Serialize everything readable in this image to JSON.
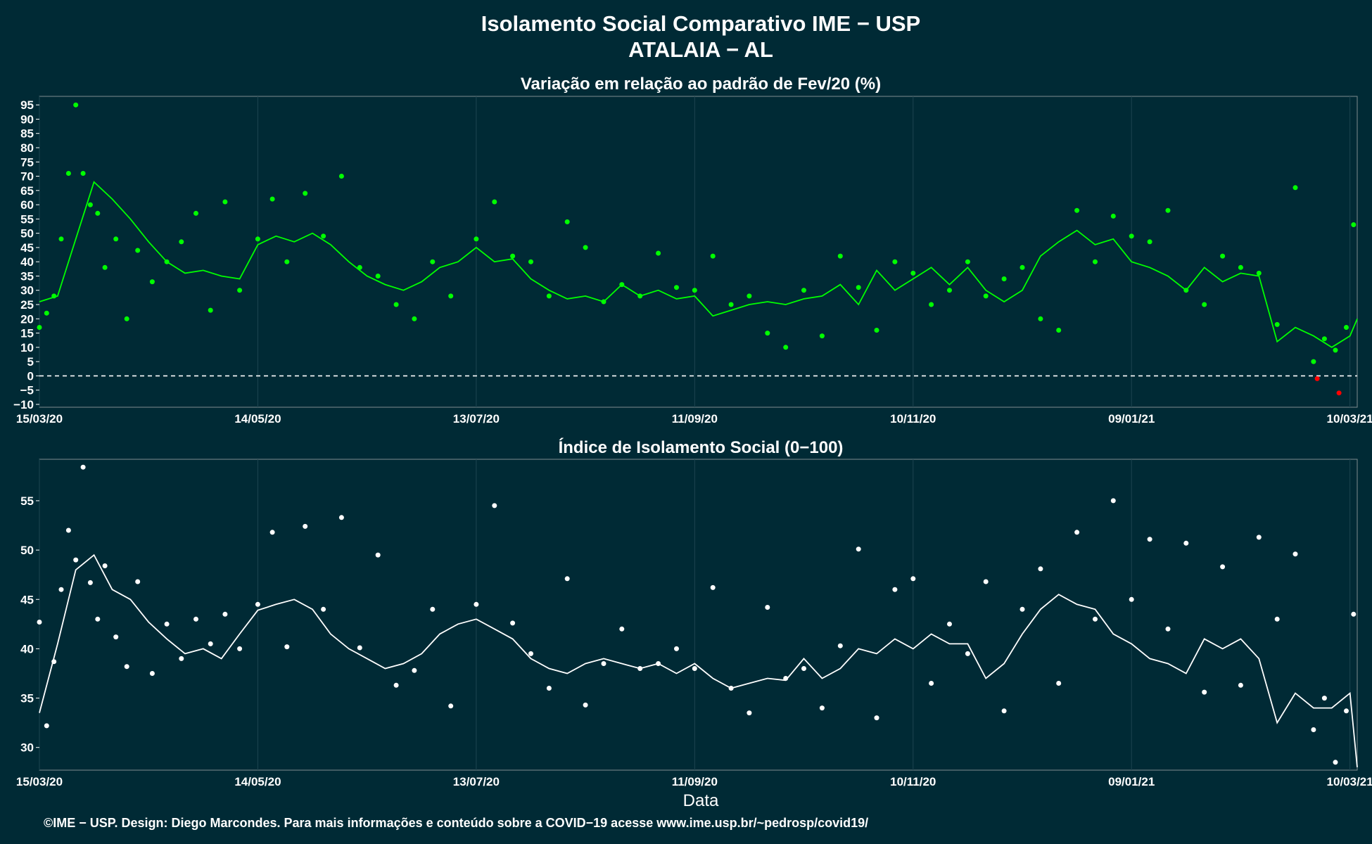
{
  "header": {
    "title": "Isolamento Social Comparativo IME − USP",
    "subtitle": "ATALAIA − AL"
  },
  "footer": {
    "xlabel": "Data",
    "credit": "©IME − USP. Design: Diego Marcondes. Para mais informações e conteúdo sobre a COVID−19 acesse www.ime.usp.br/~pedrosp/covid19/"
  },
  "colors": {
    "background": "#002a35",
    "grid": "#1d4450",
    "variation_points": "#00ff00",
    "variation_negative_points": "#ff0000",
    "variation_line": "#00ff00",
    "index_points": "#ffffff",
    "index_line": "#ffffff"
  },
  "chart_data": [
    {
      "type": "scatter",
      "title": "Variação em relação ao padrão de Fev/20 (%)",
      "xlabel": "",
      "ylabel": "",
      "x_tick_labels": [
        "15/03/20",
        "14/05/20",
        "13/07/20",
        "11/09/20",
        "10/11/20",
        "09/01/21",
        "10/03/21"
      ],
      "y_ticks": [
        -10,
        -5,
        0,
        5,
        10,
        15,
        20,
        25,
        30,
        35,
        40,
        45,
        50,
        55,
        60,
        65,
        70,
        75,
        80,
        85,
        90,
        95
      ],
      "ylim": [
        -11,
        98
      ],
      "start_date": "15/03/20",
      "end_date": "12/03/21",
      "reference_line": 0,
      "series": [
        {
          "kind": "points",
          "x": [
            "15/03/20",
            "17/03/20",
            "19/03/20",
            "21/03/20",
            "23/03/20",
            "25/03/20",
            "27/03/20",
            "29/03/20",
            "31/03/20",
            "02/04/20",
            "05/04/20",
            "08/04/20",
            "11/04/20",
            "15/04/20",
            "19/04/20",
            "23/04/20",
            "27/04/20",
            "01/05/20",
            "05/05/20",
            "09/05/20",
            "14/05/20",
            "18/05/20",
            "22/05/20",
            "27/05/20",
            "01/06/20",
            "06/06/20",
            "11/06/20",
            "16/06/20",
            "21/06/20",
            "26/06/20",
            "01/07/20",
            "06/07/20",
            "13/07/20",
            "18/07/20",
            "23/07/20",
            "28/07/20",
            "02/08/20",
            "07/08/20",
            "12/08/20",
            "17/08/20",
            "22/08/20",
            "27/08/20",
            "01/09/20",
            "06/09/20",
            "11/09/20",
            "16/09/20",
            "21/09/20",
            "26/09/20",
            "01/10/20",
            "06/10/20",
            "11/10/20",
            "16/10/20",
            "21/10/20",
            "26/10/20",
            "31/10/20",
            "05/11/20",
            "10/11/20",
            "15/11/20",
            "20/11/20",
            "25/11/20",
            "30/11/20",
            "05/12/20",
            "10/12/20",
            "15/12/20",
            "20/12/20",
            "25/12/20",
            "30/12/20",
            "04/01/21",
            "09/01/21",
            "14/01/21",
            "19/01/21",
            "24/01/21",
            "29/01/21",
            "03/02/21",
            "08/02/21",
            "13/02/21",
            "18/02/21",
            "23/02/21",
            "28/02/21",
            "03/03/21",
            "06/03/21",
            "09/03/21",
            "11/03/21"
          ],
          "values": [
            17,
            22,
            28,
            48,
            71,
            95,
            71,
            60,
            57,
            38,
            48,
            20,
            44,
            33,
            40,
            47,
            57,
            23,
            61,
            30,
            48,
            62,
            40,
            64,
            49,
            70,
            38,
            35,
            25,
            20,
            40,
            28,
            48,
            61,
            42,
            40,
            28,
            54,
            45,
            26,
            32,
            28,
            43,
            31,
            30,
            42,
            25,
            28,
            15,
            10,
            30,
            14,
            42,
            31,
            16,
            40,
            36,
            25,
            30,
            40,
            28,
            34,
            38,
            20,
            16,
            58,
            40,
            56,
            49,
            47,
            58,
            30,
            25,
            42,
            38,
            36,
            18,
            66,
            5,
            13,
            9,
            17,
            53
          ]
        },
        {
          "kind": "negative_points",
          "x": [
            "01/03/21",
            "07/03/21"
          ],
          "values": [
            -1,
            -6
          ]
        },
        {
          "kind": "moving_average_line",
          "x": [
            "15/03/20",
            "20/03/20",
            "25/03/20",
            "30/03/20",
            "04/04/20",
            "09/04/20",
            "14/04/20",
            "19/04/20",
            "24/04/20",
            "29/04/20",
            "04/05/20",
            "09/05/20",
            "14/05/20",
            "19/05/20",
            "24/05/20",
            "29/05/20",
            "03/06/20",
            "08/06/20",
            "13/06/20",
            "18/06/20",
            "23/06/20",
            "28/06/20",
            "03/07/20",
            "08/07/20",
            "13/07/20",
            "18/07/20",
            "23/07/20",
            "28/07/20",
            "02/08/20",
            "07/08/20",
            "12/08/20",
            "17/08/20",
            "22/08/20",
            "27/08/20",
            "01/09/20",
            "06/09/20",
            "11/09/20",
            "16/09/20",
            "21/09/20",
            "26/09/20",
            "01/10/20",
            "06/10/20",
            "11/10/20",
            "16/10/20",
            "21/10/20",
            "26/10/20",
            "31/10/20",
            "05/11/20",
            "10/11/20",
            "15/11/20",
            "20/11/20",
            "25/11/20",
            "30/11/20",
            "05/12/20",
            "10/12/20",
            "15/12/20",
            "20/12/20",
            "25/12/20",
            "30/12/20",
            "04/01/21",
            "09/01/21",
            "14/01/21",
            "19/01/21",
            "24/01/21",
            "29/01/21",
            "03/02/21",
            "08/02/21",
            "13/02/21",
            "18/02/21",
            "23/02/21",
            "28/02/21",
            "05/03/21",
            "10/03/21",
            "12/03/21"
          ],
          "values": [
            26,
            28,
            48,
            68,
            62,
            55,
            47,
            40,
            36,
            37,
            35,
            34,
            46,
            49,
            47,
            50,
            46,
            40,
            35,
            32,
            30,
            33,
            38,
            40,
            45,
            40,
            41,
            34,
            30,
            27,
            28,
            26,
            32,
            28,
            30,
            27,
            28,
            21,
            23,
            25,
            26,
            25,
            27,
            28,
            32,
            25,
            37,
            30,
            34,
            38,
            32,
            38,
            30,
            26,
            30,
            42,
            47,
            51,
            46,
            48,
            40,
            38,
            35,
            30,
            38,
            33,
            36,
            35,
            12,
            17,
            14,
            10,
            14,
            20
          ]
        }
      ]
    },
    {
      "type": "scatter",
      "title": "Índice de Isolamento Social (0−100)",
      "xlabel": "Data",
      "ylabel": "",
      "x_tick_labels": [
        "15/03/20",
        "14/05/20",
        "13/07/20",
        "11/09/20",
        "10/11/20",
        "09/01/21",
        "10/03/21"
      ],
      "y_ticks": [
        30,
        35,
        40,
        45,
        50,
        55
      ],
      "ylim": [
        27.7,
        59.2
      ],
      "start_date": "15/03/20",
      "end_date": "12/03/21",
      "series": [
        {
          "kind": "points",
          "x": [
            "15/03/20",
            "17/03/20",
            "19/03/20",
            "21/03/20",
            "23/03/20",
            "25/03/20",
            "27/03/20",
            "29/03/20",
            "31/03/20",
            "02/04/20",
            "05/04/20",
            "08/04/20",
            "11/04/20",
            "15/04/20",
            "19/04/20",
            "23/04/20",
            "27/04/20",
            "01/05/20",
            "05/05/20",
            "09/05/20",
            "14/05/20",
            "18/05/20",
            "22/05/20",
            "27/05/20",
            "01/06/20",
            "06/06/20",
            "11/06/20",
            "16/06/20",
            "21/06/20",
            "26/06/20",
            "01/07/20",
            "06/07/20",
            "13/07/20",
            "18/07/20",
            "23/07/20",
            "28/07/20",
            "02/08/20",
            "07/08/20",
            "12/08/20",
            "17/08/20",
            "22/08/20",
            "27/08/20",
            "01/09/20",
            "06/09/20",
            "11/09/20",
            "16/09/20",
            "21/09/20",
            "26/09/20",
            "01/10/20",
            "06/10/20",
            "11/10/20",
            "16/10/20",
            "21/10/20",
            "26/10/20",
            "31/10/20",
            "05/11/20",
            "10/11/20",
            "15/11/20",
            "20/11/20",
            "25/11/20",
            "30/11/20",
            "05/12/20",
            "10/12/20",
            "15/12/20",
            "20/12/20",
            "25/12/20",
            "30/12/20",
            "04/01/21",
            "09/01/21",
            "14/01/21",
            "19/01/21",
            "24/01/21",
            "29/01/21",
            "03/02/21",
            "08/02/21",
            "13/02/21",
            "18/02/21",
            "23/02/21",
            "28/02/21",
            "03/03/21",
            "06/03/21",
            "09/03/21",
            "11/03/21"
          ],
          "values": [
            42.7,
            32.2,
            38.7,
            46.0,
            52.0,
            49.0,
            58.4,
            46.7,
            43.0,
            48.4,
            41.2,
            38.2,
            46.8,
            37.5,
            42.5,
            39.0,
            43.0,
            40.5,
            43.5,
            40.0,
            44.5,
            51.8,
            40.2,
            52.4,
            44.0,
            53.3,
            40.1,
            49.5,
            36.3,
            37.8,
            44.0,
            34.2,
            44.5,
            54.5,
            42.6,
            39.5,
            36.0,
            47.1,
            34.3,
            38.5,
            42.0,
            38.0,
            38.5,
            40.0,
            38.0,
            46.2,
            36.0,
            33.5,
            44.2,
            37.0,
            38.0,
            34.0,
            40.3,
            50.1,
            33.0,
            46.0,
            47.1,
            36.5,
            42.5,
            39.5,
            46.8,
            33.7,
            44.0,
            48.1,
            36.5,
            51.8,
            43.0,
            55.0,
            45.0,
            51.1,
            42.0,
            50.7,
            35.6,
            48.3,
            36.3,
            51.3,
            43.0,
            49.6,
            31.8,
            35.0,
            28.5,
            33.7,
            43.5
          ]
        },
        {
          "kind": "moving_average_line",
          "x": [
            "15/03/20",
            "20/03/20",
            "25/03/20",
            "30/03/20",
            "04/04/20",
            "09/04/20",
            "14/04/20",
            "19/04/20",
            "24/04/20",
            "29/04/20",
            "04/05/20",
            "09/05/20",
            "14/05/20",
            "19/05/20",
            "24/05/20",
            "29/05/20",
            "03/06/20",
            "08/06/20",
            "13/06/20",
            "18/06/20",
            "23/06/20",
            "28/06/20",
            "03/07/20",
            "08/07/20",
            "13/07/20",
            "18/07/20",
            "23/07/20",
            "28/07/20",
            "02/08/20",
            "07/08/20",
            "12/08/20",
            "17/08/20",
            "22/08/20",
            "27/08/20",
            "01/09/20",
            "06/09/20",
            "11/09/20",
            "16/09/20",
            "21/09/20",
            "26/09/20",
            "01/10/20",
            "06/10/20",
            "11/10/20",
            "16/10/20",
            "21/10/20",
            "26/10/20",
            "31/10/20",
            "05/11/20",
            "10/11/20",
            "15/11/20",
            "20/11/20",
            "25/11/20",
            "30/11/20",
            "05/12/20",
            "10/12/20",
            "15/12/20",
            "20/12/20",
            "25/12/20",
            "30/12/20",
            "04/01/21",
            "09/01/21",
            "14/01/21",
            "19/01/21",
            "24/01/21",
            "29/01/21",
            "03/02/21",
            "08/02/21",
            "13/02/21",
            "18/02/21",
            "23/02/21",
            "28/02/21",
            "05/03/21",
            "10/03/21",
            "12/03/21"
          ],
          "values": [
            33.5,
            40.5,
            48.0,
            49.5,
            46.0,
            45.0,
            42.7,
            41.0,
            39.5,
            40.0,
            39.0,
            41.5,
            43.9,
            44.5,
            45.0,
            44.0,
            41.5,
            40.0,
            39.0,
            38.0,
            38.5,
            39.5,
            41.5,
            42.5,
            43.0,
            42.0,
            41.0,
            39.0,
            38.0,
            37.5,
            38.5,
            39.0,
            38.5,
            38.0,
            38.5,
            37.5,
            38.5,
            37.0,
            36.0,
            36.5,
            37.0,
            36.8,
            39.0,
            37.0,
            38.0,
            40.0,
            39.5,
            41.0,
            40.0,
            41.5,
            40.5,
            40.5,
            37.0,
            38.5,
            41.5,
            44.0,
            45.5,
            44.5,
            44.0,
            41.5,
            40.5,
            39.0,
            38.5,
            37.5,
            41.0,
            40.0,
            41.0,
            39.0,
            32.5,
            35.5,
            34.0,
            34.0,
            35.5,
            28.0
          ]
        }
      ]
    }
  ]
}
